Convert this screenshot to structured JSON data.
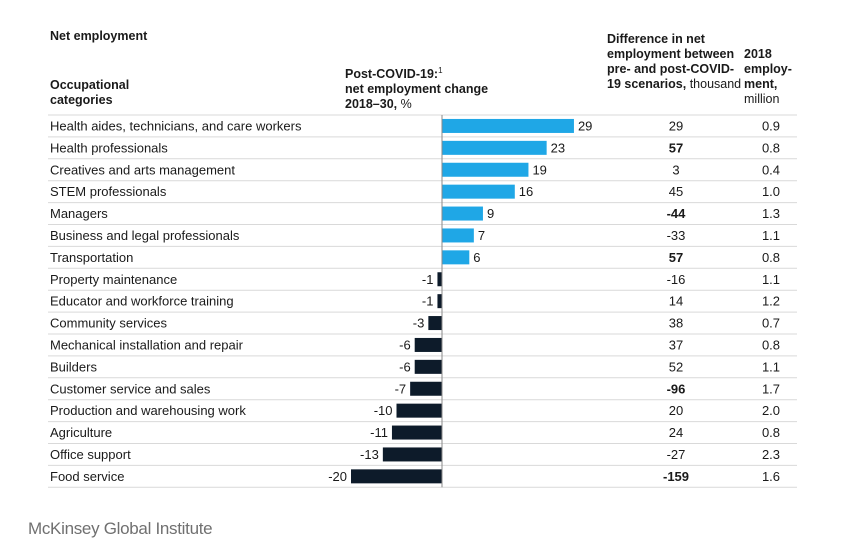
{
  "header": {
    "title": "Net employment",
    "categories_label": "Occupational categories",
    "change_label_line1": "Post-COVID-19:",
    "change_label_sup": "1",
    "change_label_line2": "net employment change",
    "change_label_line3": "2018–30,",
    "change_label_unit": "%",
    "difference_label": "Difference in net employment between pre- and post-COVID-19 scenarios,",
    "difference_unit": "thousand",
    "employment_label": "2018 employ-ment,",
    "employment_unit": "million"
  },
  "source": "McKinsey Global Institute",
  "colors": {
    "positive": "#1fa7e6",
    "negative": "#0d1b2a",
    "gridline": "#d9d9d9"
  },
  "chart_data": {
    "type": "table",
    "title": "Net employment",
    "columns": [
      "Occupational categories",
      "Post-COVID-19: net employment change 2018–30, %",
      "Difference in net employment between pre- and post-COVID-19 scenarios, thousand",
      "2018 employment, million"
    ],
    "rows": [
      {
        "category": "Health aides, technicians, and care workers",
        "change": 29,
        "difference": "29",
        "difference_bold": false,
        "employment": "0.9"
      },
      {
        "category": "Health professionals",
        "change": 23,
        "difference": "57",
        "difference_bold": true,
        "employment": "0.8"
      },
      {
        "category": "Creatives and arts management",
        "change": 19,
        "difference": "3",
        "difference_bold": false,
        "employment": "0.4"
      },
      {
        "category": "STEM professionals",
        "change": 16,
        "difference": "45",
        "difference_bold": false,
        "employment": "1.0"
      },
      {
        "category": "Managers",
        "change": 9,
        "difference": "-44",
        "difference_bold": true,
        "employment": "1.3"
      },
      {
        "category": "Business and legal professionals",
        "change": 7,
        "difference": "-33",
        "difference_bold": false,
        "employment": "1.1"
      },
      {
        "category": "Transportation",
        "change": 6,
        "difference": "57",
        "difference_bold": true,
        "employment": "0.8"
      },
      {
        "category": "Property maintenance",
        "change": -1,
        "difference": "-16",
        "difference_bold": false,
        "employment": "1.1"
      },
      {
        "category": "Educator and workforce training",
        "change": -1,
        "difference": "14",
        "difference_bold": false,
        "employment": "1.2"
      },
      {
        "category": "Community services",
        "change": -3,
        "difference": "38",
        "difference_bold": false,
        "employment": "0.7"
      },
      {
        "category": "Mechanical installation and repair",
        "change": -6,
        "difference": "37",
        "difference_bold": false,
        "employment": "0.8"
      },
      {
        "category": "Builders",
        "change": -6,
        "difference": "52",
        "difference_bold": false,
        "employment": "1.1"
      },
      {
        "category": "Customer service and sales",
        "change": -7,
        "difference": "-96",
        "difference_bold": true,
        "employment": "1.7"
      },
      {
        "category": "Production and warehousing work",
        "change": -10,
        "difference": "20",
        "difference_bold": false,
        "employment": "2.0"
      },
      {
        "category": "Agriculture",
        "change": -11,
        "difference": "24",
        "difference_bold": false,
        "employment": "0.8"
      },
      {
        "category": "Office support",
        "change": -13,
        "difference": "-27",
        "difference_bold": false,
        "employment": "2.3"
      },
      {
        "category": "Food service",
        "change": -20,
        "difference": "-159",
        "difference_bold": true,
        "employment": "1.6"
      }
    ]
  }
}
